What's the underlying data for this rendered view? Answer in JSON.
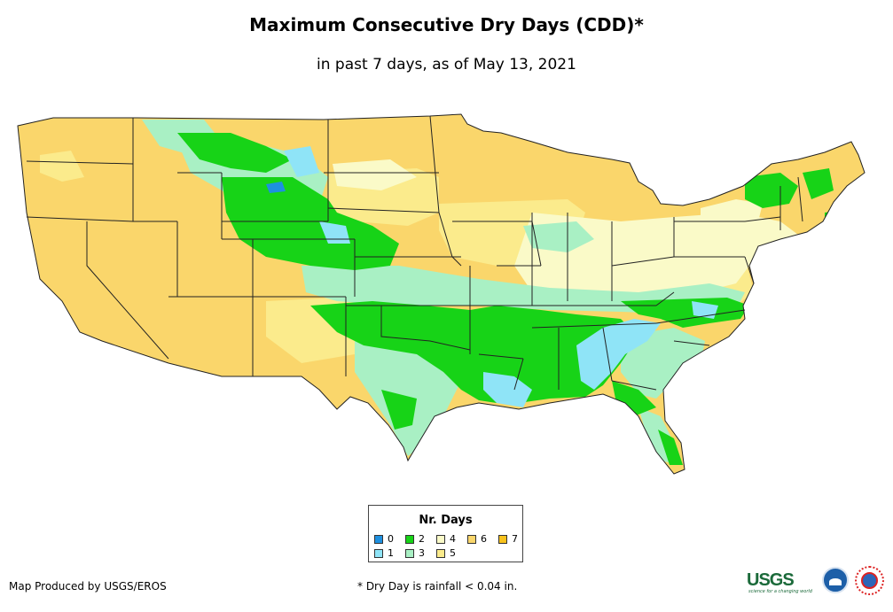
{
  "header": {
    "title": "Maximum Consecutive Dry Days (CDD)*",
    "subtitle": "in past 7 days, as of May 13, 2021"
  },
  "legend": {
    "title": "Nr. Days",
    "items": [
      {
        "label": "0",
        "color": "#1e90e0"
      },
      {
        "label": "1",
        "color": "#8fe4f7"
      },
      {
        "label": "2",
        "color": "#17d317"
      },
      {
        "label": "3",
        "color": "#a9f0c4"
      },
      {
        "label": "4",
        "color": "#fafac8"
      },
      {
        "label": "5",
        "color": "#fbeb8c"
      },
      {
        "label": "6",
        "color": "#fad66b"
      },
      {
        "label": "7",
        "color": "#f8c21c"
      }
    ]
  },
  "footer": {
    "credit": "Map Produced by USGS/EROS",
    "note": "* Dry Day is rainfall < 0.04 in."
  },
  "logos": {
    "usgs_text": "USGS",
    "usgs_tagline": "science for a changing world",
    "noaa_icon": "noaa-logo-icon",
    "nws_icon": "nws-logo-icon"
  },
  "map": {
    "region": "Contiguous United States",
    "boundary_color": "#222222"
  }
}
